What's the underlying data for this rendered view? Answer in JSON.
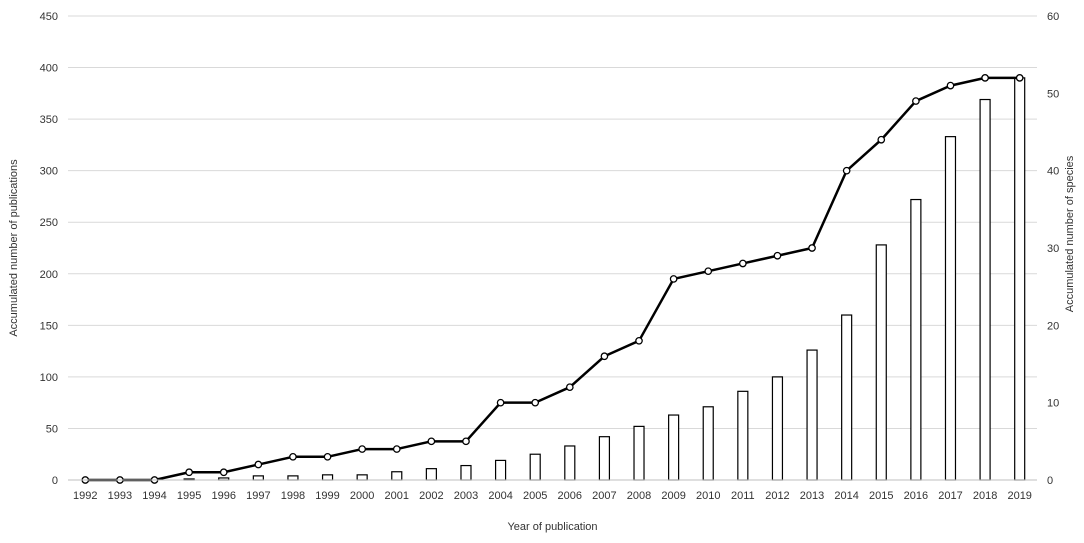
{
  "chart_data": {
    "type": "bar",
    "combo_line": true,
    "categories": [
      "1992",
      "1993",
      "1994",
      "1995",
      "1996",
      "1997",
      "1998",
      "1999",
      "2000",
      "2001",
      "2002",
      "2003",
      "2004",
      "2005",
      "2006",
      "2007",
      "2008",
      "2009",
      "2010",
      "2011",
      "2012",
      "2013",
      "2014",
      "2015",
      "2016",
      "2017",
      "2018",
      "2019"
    ],
    "series": [
      {
        "type": "bar",
        "axis": "left",
        "values": [
          0,
          0,
          0,
          1,
          2,
          4,
          4,
          5,
          5,
          8,
          11,
          14,
          19,
          25,
          33,
          42,
          52,
          63,
          71,
          86,
          100,
          126,
          160,
          228,
          272,
          333,
          369,
          390
        ]
      },
      {
        "type": "line",
        "axis": "right",
        "values": [
          0,
          0,
          0,
          1,
          1,
          2,
          3,
          3,
          4,
          4,
          5,
          5,
          10,
          10,
          12,
          16,
          18,
          26,
          27,
          28,
          29,
          30,
          40,
          44,
          49,
          51,
          52,
          52
        ]
      }
    ],
    "xlabel": "Year of publication",
    "ylabel": "Accumulated number of publications",
    "y2label": "Accumulated number of species",
    "ylim": [
      0,
      450
    ],
    "y2lim": [
      0,
      60
    ],
    "yticks": [
      0,
      50,
      100,
      150,
      200,
      250,
      300,
      350,
      400,
      450
    ],
    "y2ticks": [
      0,
      10,
      20,
      30,
      40,
      50,
      60
    ],
    "grid": true,
    "legend": "none",
    "colors": {
      "bar_fill": "#ffffff",
      "bar_stroke": "#000000",
      "line": "#000000",
      "grid": "#d9d9d9",
      "text": "#333333"
    }
  }
}
